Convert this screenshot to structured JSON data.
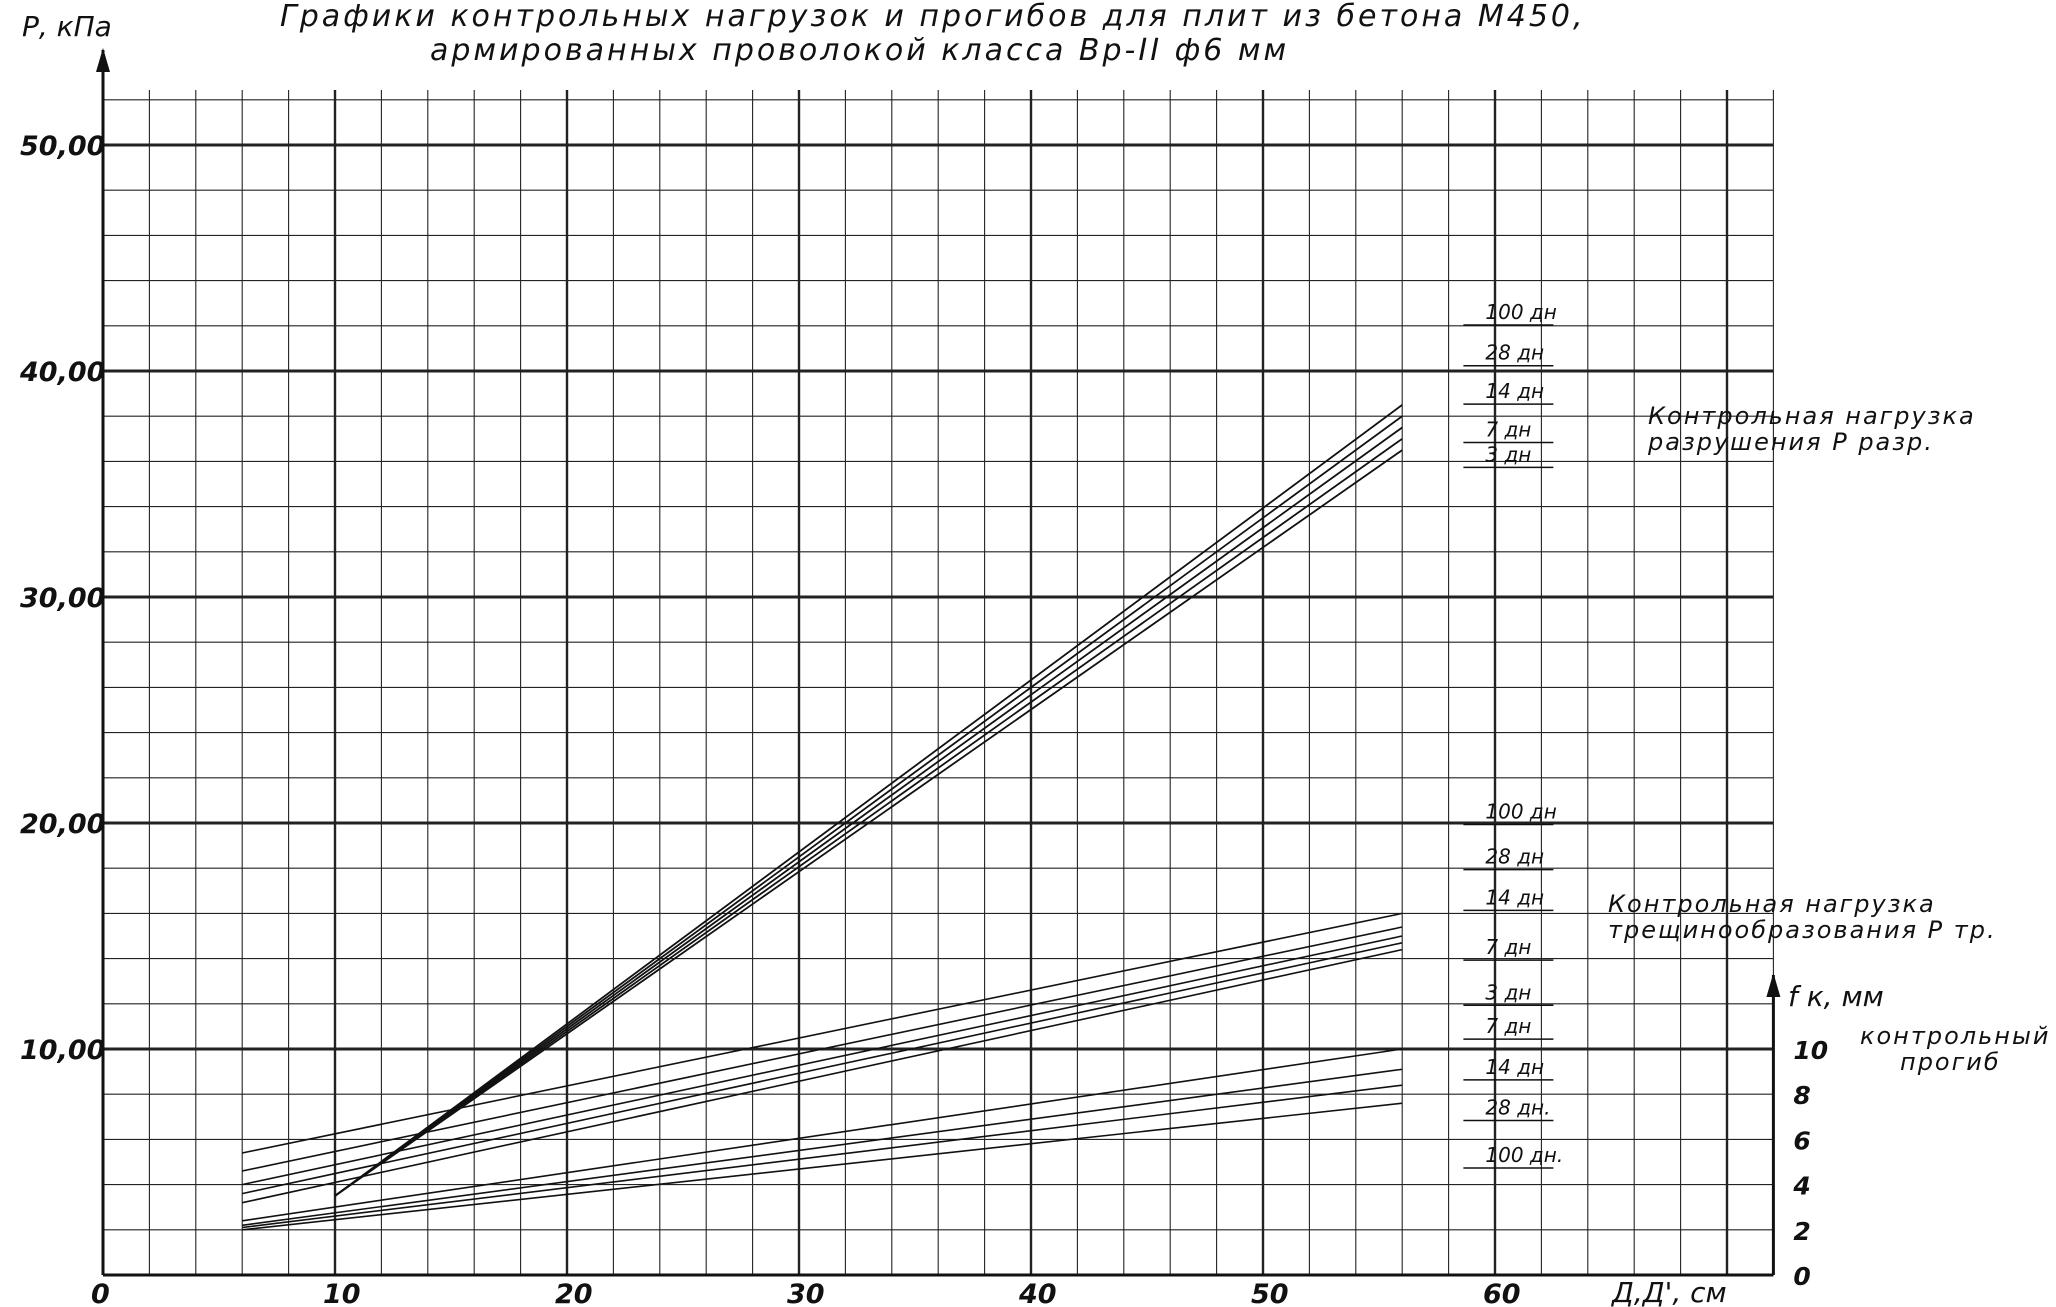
{
  "chart_data": {
    "type": "line",
    "title": "Графики контрольных нагрузок и прогибов для плит из бетона М450,",
    "subtitle": "армированных проволокой класса Вр-II ф6 мм",
    "ylabel": "Р, кПа",
    "xlabel": "Д,Д', см",
    "y2label": "f к, мм",
    "xlim": [
      0,
      72
    ],
    "ylim": [
      0,
      50
    ],
    "y2lim": [
      0,
      10
    ],
    "x_ticks": [
      "0",
      "10",
      "20",
      "30",
      "40",
      "50",
      "60"
    ],
    "y_ticks": [
      "10,00",
      "20,00",
      "30,00",
      "40,00",
      "50,00"
    ],
    "y2_ticks": [
      "0",
      "2",
      "4",
      "6",
      "8",
      "10"
    ],
    "grid": true,
    "groups": [
      {
        "name": "Контрольная нагрузка разрушения Р разр.",
        "annotation_lines": [
          "Контрольная нагрузка",
          "разрушения   Р разр."
        ],
        "series": [
          {
            "name": "100 дн",
            "x": [
              10,
              56
            ],
            "y": [
              3.5,
              38.5
            ]
          },
          {
            "name": "28 дн",
            "x": [
              10,
              56
            ],
            "y": [
              3.5,
              38.0
            ]
          },
          {
            "name": "14 дн",
            "x": [
              10,
              56
            ],
            "y": [
              3.5,
              37.5
            ]
          },
          {
            "name": "7 дн",
            "x": [
              10,
              56
            ],
            "y": [
              3.5,
              37.0
            ]
          },
          {
            "name": "3 дн",
            "x": [
              10,
              56
            ],
            "y": [
              3.5,
              36.5
            ]
          }
        ]
      },
      {
        "name": "Контрольная нагрузка трещинообразования Р тр.",
        "annotation_lines": [
          "Контрольная нагрузка",
          "трещинообразования   Р тр."
        ],
        "series": [
          {
            "name": "100 дн",
            "x": [
              6,
              56
            ],
            "y": [
              5.4,
              16.0
            ]
          },
          {
            "name": "28 дн",
            "x": [
              6,
              56
            ],
            "y": [
              4.6,
              15.4
            ]
          },
          {
            "name": "14 дн",
            "x": [
              6,
              56
            ],
            "y": [
              4.0,
              15.0
            ]
          },
          {
            "name": "7 дн",
            "x": [
              6,
              56
            ],
            "y": [
              3.6,
              14.7
            ]
          },
          {
            "name": "3 дн",
            "x": [
              6,
              56
            ],
            "y": [
              3.2,
              14.4
            ]
          }
        ]
      },
      {
        "name": "контрольный прогиб",
        "annotation_lines": [
          "контрольный",
          "прогиб"
        ],
        "series": [
          {
            "name": "7 дн",
            "x": [
              6,
              56
            ],
            "y": [
              2.4,
              10.0
            ]
          },
          {
            "name": "14 дн",
            "x": [
              6,
              56
            ],
            "y": [
              2.2,
              9.1
            ]
          },
          {
            "name": "28 дн.",
            "x": [
              6,
              56
            ],
            "y": [
              2.1,
              8.4
            ]
          },
          {
            "name": "100 дн.",
            "x": [
              6,
              56
            ],
            "y": [
              2.0,
              7.6
            ]
          }
        ]
      }
    ],
    "labels_right": [
      {
        "text": "100 дн",
        "y": 42.3
      },
      {
        "text": "28 дн",
        "y": 40.5
      },
      {
        "text": "14 дн",
        "y": 38.8
      },
      {
        "text": "7 дн",
        "y": 37.1
      },
      {
        "text": "3 дн",
        "y": 36.0
      },
      {
        "text": "100 дн",
        "y": 20.2
      },
      {
        "text": "28 дн",
        "y": 18.2
      },
      {
        "text": "14 дн",
        "y": 16.4
      },
      {
        "text": "7 дн",
        "y": 14.2
      },
      {
        "text": "3 дн",
        "y": 12.2
      },
      {
        "text": "7 дн",
        "y": 10.7
      },
      {
        "text": "14 дн",
        "y": 8.9
      },
      {
        "text": "28 дн.",
        "y": 7.1
      },
      {
        "text": "100 дн.",
        "y": 5.0
      }
    ]
  },
  "colors": {
    "ink": "#111111",
    "grid": "#222222",
    "background": "#ffffff"
  }
}
